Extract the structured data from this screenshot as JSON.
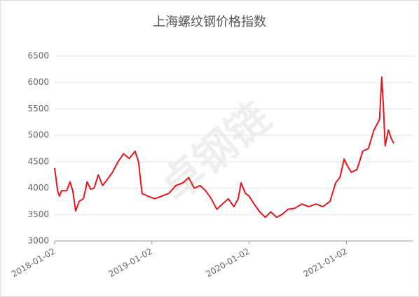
{
  "chart_data": {
    "type": "line",
    "title": "上海螺纹钢价格指数",
    "watermark": "卓钢链",
    "color": "#e8141b",
    "x": [
      "2018-01-02",
      "2018-01-13",
      "2018-01-20",
      "2018-01-28",
      "2018-02-16",
      "2018-03-01",
      "2018-03-11",
      "2018-03-22",
      "2018-04-04",
      "2018-04-20",
      "2018-05-04",
      "2018-05-17",
      "2018-05-30",
      "2018-06-15",
      "2018-07-01",
      "2018-07-17",
      "2018-08-07",
      "2018-08-28",
      "2018-09-18",
      "2018-10-09",
      "2018-10-31",
      "2018-11-13",
      "2018-11-26",
      "2018-12-17",
      "2019-01-13",
      "2019-02-08",
      "2019-03-07",
      "2019-04-02",
      "2019-04-29",
      "2019-05-20",
      "2019-06-10",
      "2019-07-02",
      "2019-07-23",
      "2019-08-13",
      "2019-09-03",
      "2019-09-24",
      "2019-10-16",
      "2019-11-06",
      "2019-11-22",
      "2019-12-03",
      "2019-12-19",
      "2020-01-02",
      "2020-01-21",
      "2020-02-11",
      "2020-03-03",
      "2020-03-24",
      "2020-04-14",
      "2020-05-05",
      "2020-05-27",
      "2020-06-22",
      "2020-07-18",
      "2020-08-14",
      "2020-09-09",
      "2020-10-05",
      "2020-11-01",
      "2020-11-22",
      "2020-12-08",
      "2020-12-24",
      "2021-01-02",
      "2021-01-20",
      "2021-02-10",
      "2021-03-04",
      "2021-03-25",
      "2021-04-15",
      "2021-05-06",
      "2021-05-14",
      "2021-05-20",
      "2021-05-27",
      "2021-06-08",
      "2021-06-18",
      "2021-06-28"
    ],
    "values": [
      4380,
      3950,
      3850,
      3950,
      3950,
      4120,
      3950,
      3570,
      3750,
      3800,
      4120,
      3980,
      4000,
      4250,
      4050,
      4150,
      4300,
      4500,
      4650,
      4560,
      4700,
      4500,
      3900,
      3850,
      3800,
      3850,
      3900,
      4050,
      4100,
      4200,
      4000,
      4050,
      3950,
      3800,
      3600,
      3700,
      3800,
      3650,
      3800,
      4100,
      3900,
      3850,
      3700,
      3550,
      3450,
      3550,
      3450,
      3500,
      3600,
      3620,
      3700,
      3650,
      3700,
      3650,
      3750,
      4100,
      4200,
      4550,
      4450,
      4300,
      4350,
      4700,
      4750,
      5100,
      5300,
      6100,
      5600,
      4800,
      5100,
      4950,
      4850
    ],
    "xlim": [
      "2018-01-02",
      "2021-09-10"
    ],
    "xticks": [
      "2018-01-02",
      "2019-01-02",
      "2020-01-02",
      "2021-01-02"
    ],
    "ylim": [
      3000,
      6500
    ],
    "yticks": [
      3000,
      3500,
      4000,
      4500,
      5000,
      5500,
      6000,
      6500
    ],
    "grid": true
  }
}
